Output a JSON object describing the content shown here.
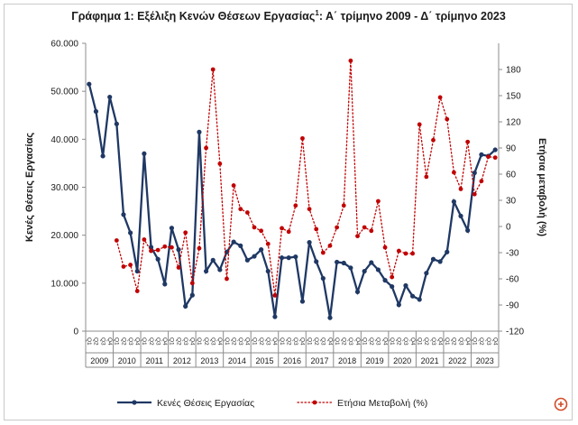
{
  "chart_data": {
    "type": "line",
    "title": "Γράφημα 1: Εξέλιξη Κενών Θέσεων Εργασίας",
    "title_superscript": "1",
    "title_tail": ": Α΄ τρίμηνο 2009 - Δ΄ τρίμηνο 2023",
    "ylabel": "Κενές Θέσεις Εργασίας",
    "y2label": "Ετήσια μεταβολή (%)",
    "ylim": [
      0,
      60000
    ],
    "y2lim": [
      -120,
      210
    ],
    "yticks": [
      "0",
      "10.000",
      "20.000",
      "30.000",
      "40.000",
      "50.000",
      "60.000"
    ],
    "yticks_values": [
      0,
      10000,
      20000,
      30000,
      40000,
      50000,
      60000
    ],
    "y2ticks": [
      "-120",
      "-90",
      "-60",
      "-30",
      "0",
      "30",
      "60",
      "90",
      "120",
      "150",
      "180"
    ],
    "y2ticks_values": [
      -120,
      -90,
      -60,
      -30,
      0,
      30,
      60,
      90,
      120,
      150,
      180
    ],
    "quarter_labels": [
      "Q1",
      "Q2",
      "Q3",
      "Q4"
    ],
    "years": [
      "2009",
      "2010",
      "2011",
      "2012",
      "2013",
      "2014",
      "2015",
      "2016",
      "2017",
      "2018",
      "2019",
      "2020",
      "2021",
      "2022",
      "2023"
    ],
    "series": [
      {
        "name": "Κενές Θέσεις Εργασίας",
        "color": "#1f3864",
        "style": "solid",
        "axis": "left",
        "values": [
          51500,
          45800,
          36500,
          48800,
          43200,
          24300,
          20500,
          12500,
          37000,
          17500,
          15000,
          9800,
          21500,
          17000,
          5200,
          7500,
          41500,
          12500,
          14800,
          12800,
          16500,
          18600,
          17800,
          14800,
          15600,
          17000,
          12500,
          3000,
          15300,
          15300,
          15500,
          6200,
          18500,
          14500,
          11000,
          2800,
          14400,
          14200,
          13200,
          8200,
          12500,
          14300,
          12800,
          10600,
          9300,
          5500,
          9500,
          7300,
          6600,
          12100,
          15000,
          14500,
          16500,
          27000,
          24000,
          21000,
          33000,
          36800,
          36500,
          37800
        ]
      },
      {
        "name": "Ετήσια Μεταβολή (%)",
        "color": "#c00000",
        "style": "dotted",
        "axis": "right",
        "values": [
          null,
          null,
          null,
          null,
          -16,
          -46,
          -44,
          -74,
          -15,
          -28,
          -27,
          -23,
          -24,
          -47,
          -7,
          -65,
          -25,
          90,
          180,
          72,
          -60,
          47,
          20,
          16,
          -1,
          -5,
          -20,
          -79,
          -2,
          -6,
          24,
          101,
          20,
          -3,
          -30,
          -22,
          -1,
          24,
          190,
          -11,
          -1,
          -5,
          29,
          -24,
          -58,
          -28,
          -31,
          -31,
          117,
          57,
          99,
          148,
          123,
          62,
          43,
          97,
          37,
          52,
          80,
          79
        ]
      }
    ],
    "legend": [
      "Κενές Θέσεις Εργασίας",
      "Ετήσια Μεταβολή (%)"
    ],
    "legend_position": "bottom",
    "grid": false
  }
}
